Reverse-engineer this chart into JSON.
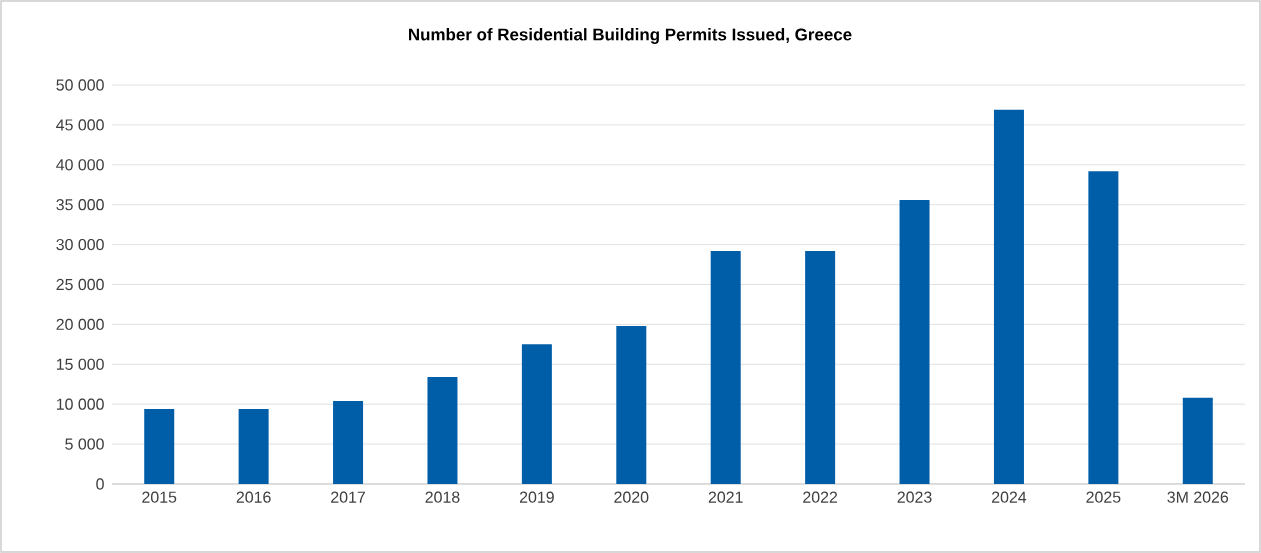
{
  "chart_data": {
    "type": "bar",
    "title": "Number of Residential Building Permits Issued, Greece",
    "categories": [
      "2015",
      "2016",
      "2017",
      "2018",
      "2019",
      "2020",
      "2021",
      "2022",
      "2023",
      "2024",
      "2025",
      "3M 2026"
    ],
    "values": [
      9400,
      9400,
      10400,
      13400,
      17500,
      19800,
      29200,
      29200,
      35600,
      46900,
      39200,
      10800
    ],
    "color": "#005ea8",
    "ylim": [
      0,
      50000
    ],
    "yticks": [
      {
        "value": 0,
        "label": "0"
      },
      {
        "value": 5000,
        "label": "5 000"
      },
      {
        "value": 10000,
        "label": "10 000"
      },
      {
        "value": 15000,
        "label": "15 000"
      },
      {
        "value": 20000,
        "label": "20 000"
      },
      {
        "value": 25000,
        "label": "25 000"
      },
      {
        "value": 30000,
        "label": "30 000"
      },
      {
        "value": 35000,
        "label": "35 000"
      },
      {
        "value": 40000,
        "label": "40 000"
      },
      {
        "value": 45000,
        "label": "45 000"
      },
      {
        "value": 50000,
        "label": "50 000"
      }
    ],
    "grid": "y"
  }
}
